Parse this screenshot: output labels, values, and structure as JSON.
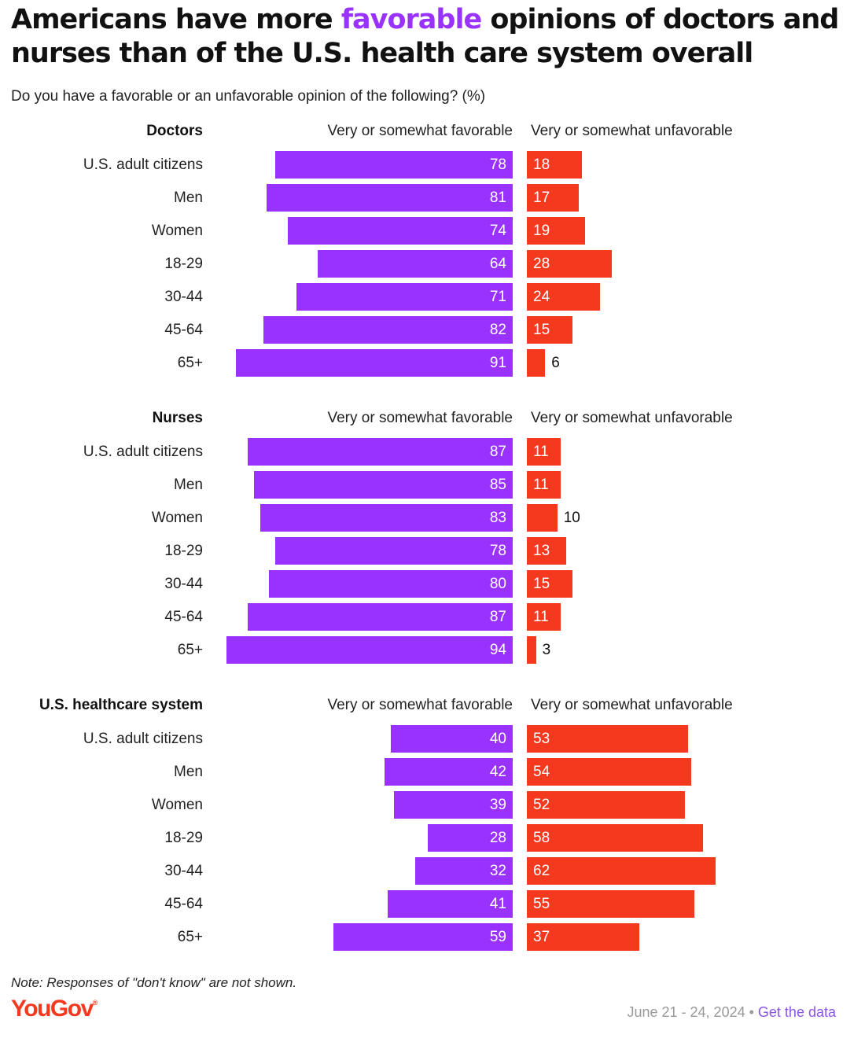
{
  "header": {
    "title_part1": "Americans have more ",
    "title_highlight": "favorable",
    "title_part2": " opinions of doctors and nurses than of the U.S. health care system overall",
    "subtitle": "Do you have a favorable or an unfavorable opinion of the following? (%)"
  },
  "colors": {
    "favorable": "#9a32ff",
    "unfavorable": "#f5391f",
    "title_highlight": "#9a32ff"
  },
  "chart_data": {
    "type": "bar",
    "orientation": "horizontal-diverging",
    "value_unit": "%",
    "series_names": [
      "Very or somewhat favorable",
      "Very or somewhat unfavorable"
    ],
    "categories": [
      "U.S. adult citizens",
      "Men",
      "Women",
      "18-29",
      "30-44",
      "45-64",
      "65+"
    ],
    "panels": [
      {
        "title": "Doctors",
        "favorable_label": "Very or somewhat favorable",
        "unfavorable_label": "Very or somewhat unfavorable",
        "favorable": [
          78,
          81,
          74,
          64,
          71,
          82,
          91
        ],
        "unfavorable": [
          18,
          17,
          19,
          28,
          24,
          15,
          6
        ]
      },
      {
        "title": "Nurses",
        "favorable_label": "Very or somewhat favorable",
        "unfavorable_label": "Very or somewhat unfavorable",
        "favorable": [
          87,
          85,
          83,
          78,
          80,
          87,
          94
        ],
        "unfavorable": [
          11,
          11,
          10,
          13,
          15,
          11,
          3
        ]
      },
      {
        "title": "U.S. healthcare system",
        "favorable_label": "Very or somewhat favorable",
        "unfavorable_label": "Very or somewhat unfavorable",
        "favorable": [
          40,
          42,
          39,
          28,
          32,
          41,
          59
        ],
        "unfavorable": [
          53,
          54,
          52,
          58,
          62,
          55,
          37
        ]
      }
    ]
  },
  "footer": {
    "note": "Note: Responses of \"don't know\" are not shown.",
    "logo_text": "YouGov",
    "logo_mark": "®",
    "date": "June 21 - 24, 2024",
    "separator": " • ",
    "link_label": "Get the data"
  }
}
